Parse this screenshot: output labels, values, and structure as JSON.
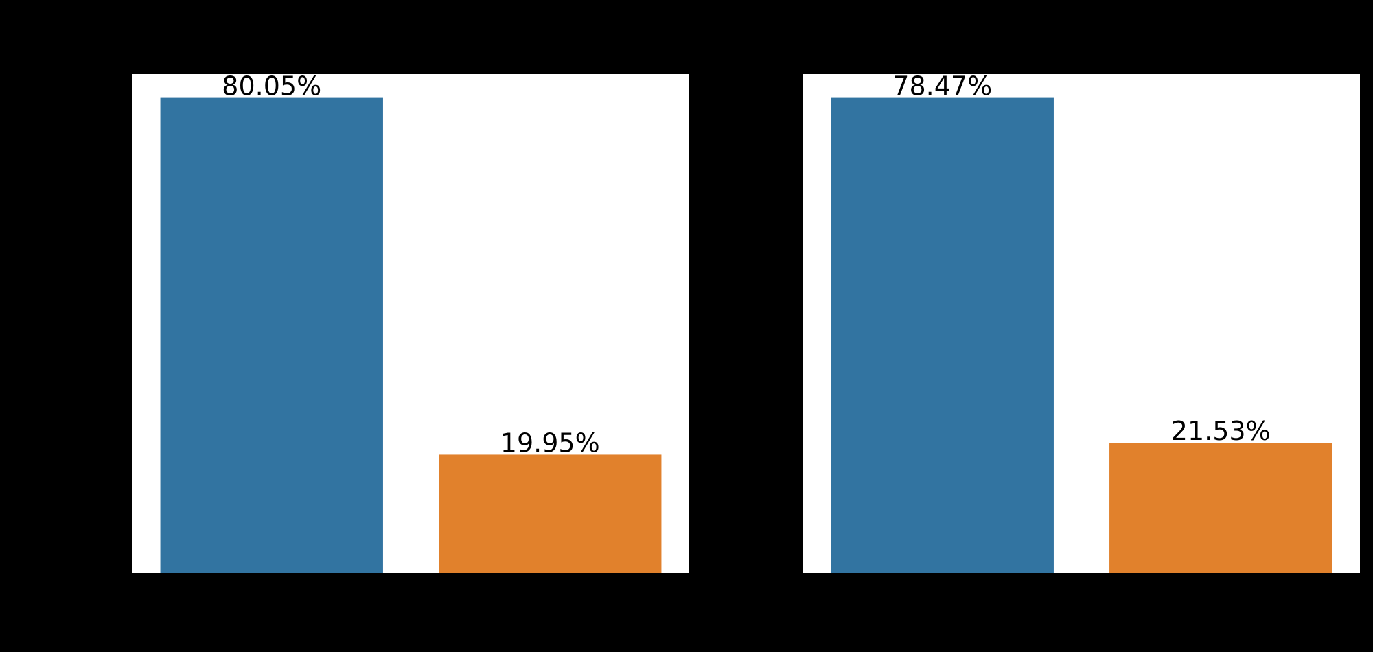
{
  "chart_data": [
    {
      "type": "bar",
      "values": [
        80.05,
        19.95
      ],
      "value_labels": [
        "80.05%",
        "19.95%"
      ],
      "colors": [
        "#3274a1",
        "#e1812c"
      ],
      "ylim": [
        0,
        84.05
      ]
    },
    {
      "type": "bar",
      "values": [
        78.47,
        21.53
      ],
      "value_labels": [
        "78.47%",
        "21.53%"
      ],
      "colors": [
        "#3274a1",
        "#e1812c"
      ],
      "ylim": [
        0,
        82.39
      ]
    }
  ]
}
